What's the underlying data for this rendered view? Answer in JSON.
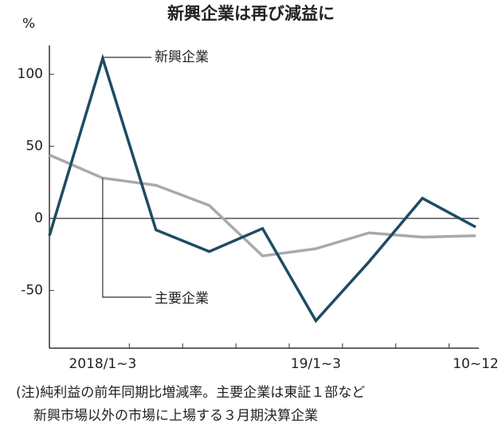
{
  "chart_data": {
    "type": "line",
    "title": "新興企業は再び減益に",
    "y_unit": "%",
    "categories": [
      null,
      "2018/1~3",
      null,
      null,
      null,
      "19/1~3",
      null,
      null,
      "10~12"
    ],
    "series": [
      {
        "name": "新興企業",
        "color": "#1d4c63",
        "values": [
          -12,
          111,
          -8,
          -23,
          -7,
          -71,
          -30,
          14,
          -6
        ]
      },
      {
        "name": "主要企業",
        "color": "#a9a9ad",
        "values": [
          44,
          28,
          23,
          9,
          -26,
          -21,
          -10,
          -13,
          -12
        ]
      }
    ],
    "ylim": [
      -90,
      120
    ],
    "yticks": [
      -50,
      0,
      50,
      100
    ],
    "notes": [
      "(注)純利益の前年同期比増減率。主要企業は東証１部など",
      "新興市場以外の市場に上場する３月期決算企業"
    ]
  }
}
